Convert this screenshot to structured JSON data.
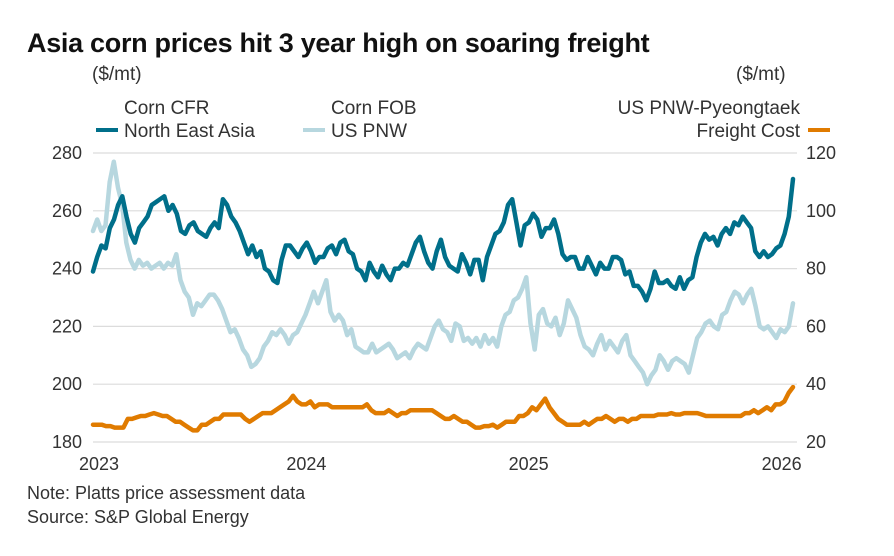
{
  "chart_data": {
    "type": "line",
    "title": "Asia corn prices hit 3 year high on soaring freight",
    "left_axis": {
      "unit": "($/mt)",
      "range": [
        180,
        280
      ],
      "ticks": [
        180,
        200,
        220,
        240,
        260,
        280
      ]
    },
    "right_axis": {
      "unit": "($/mt)",
      "range": [
        20,
        120
      ],
      "ticks": [
        20,
        40,
        60,
        80,
        100,
        120
      ]
    },
    "x_range": [
      2023.0,
      2026.2
    ],
    "x_ticks": [
      {
        "label": "2023",
        "value": 2023.0
      },
      {
        "label": "2024",
        "value": 2023.97
      },
      {
        "label": "2025",
        "value": 2024.98
      },
      {
        "label": "2026",
        "value": 2026.13
      }
    ],
    "grid": true,
    "legend": [
      {
        "line1": "Corn CFR",
        "line2": "North East Asia",
        "color": "#006f8a",
        "axis": "left"
      },
      {
        "line1": "Corn FOB",
        "line2": "US PNW",
        "color": "#b7d7df",
        "axis": "left"
      },
      {
        "line1": "US PNW-Pyeongtaek",
        "line2": "Freight Cost",
        "color": "#e07b00",
        "axis": "right"
      }
    ],
    "series": [
      {
        "name": "Corn CFR North East Asia",
        "axis": "left",
        "color": "#006f8a",
        "values": [
          239,
          244,
          248,
          247,
          254,
          257,
          262,
          265,
          258,
          252,
          249,
          254,
          256,
          258,
          262,
          263,
          264,
          265,
          260,
          262,
          259,
          253,
          252,
          255,
          256,
          253,
          252,
          251,
          254,
          256,
          254,
          264,
          262,
          258,
          256,
          253,
          249,
          245,
          248,
          244,
          246,
          240,
          239,
          236,
          235,
          243,
          248,
          248,
          246,
          244,
          247,
          249,
          246,
          242,
          244,
          244,
          247,
          248,
          245,
          249,
          250,
          246,
          245,
          240,
          239,
          236,
          242,
          239,
          237,
          241,
          238,
          236,
          240,
          240,
          242,
          241,
          245,
          249,
          251,
          246,
          242,
          240,
          246,
          250,
          244,
          241,
          240,
          239,
          245,
          242,
          238,
          243,
          243,
          236,
          244,
          248,
          252,
          253,
          256,
          262,
          264,
          256,
          248,
          255,
          256,
          259,
          257,
          251,
          254,
          254,
          257,
          252,
          245,
          243,
          244,
          244,
          240,
          240,
          244,
          241,
          238,
          242,
          240,
          240,
          244,
          244,
          243,
          238,
          239,
          234,
          234,
          232,
          229,
          233,
          239,
          235,
          235,
          236,
          234,
          233,
          237,
          233,
          236,
          237,
          244,
          249,
          252,
          250,
          251,
          248,
          252,
          254,
          252,
          256,
          255,
          258,
          256,
          254,
          246,
          244,
          246,
          244,
          245,
          247,
          248,
          252,
          258,
          271
        ]
      },
      {
        "name": "Corn FOB US PNW",
        "axis": "left",
        "color": "#b7d7df",
        "values": [
          253,
          257,
          253,
          255,
          270,
          277,
          268,
          262,
          249,
          243,
          240,
          243,
          241,
          242,
          240,
          241,
          242,
          240,
          242,
          241,
          245,
          236,
          232,
          230,
          224,
          228,
          227,
          229,
          231,
          231,
          229,
          226,
          222,
          218,
          219,
          216,
          212,
          210,
          206,
          207,
          209,
          213,
          215,
          218,
          217,
          219,
          217,
          214,
          217,
          218,
          221,
          224,
          228,
          232,
          228,
          232,
          236,
          225,
          222,
          224,
          222,
          217,
          219,
          213,
          212,
          211,
          211,
          214,
          211,
          212,
          213,
          214,
          212,
          209,
          210,
          211,
          209,
          212,
          214,
          213,
          212,
          216,
          220,
          222,
          219,
          218,
          215,
          221,
          220,
          215,
          216,
          214,
          216,
          213,
          217,
          214,
          216,
          213,
          220,
          224,
          225,
          229,
          230,
          233,
          237,
          221,
          212,
          224,
          226,
          221,
          220,
          223,
          217,
          221,
          229,
          226,
          223,
          217,
          213,
          212,
          210,
          214,
          217,
          212,
          215,
          213,
          211,
          215,
          217,
          210,
          208,
          206,
          204,
          200,
          203,
          205,
          210,
          208,
          205,
          208,
          209,
          208,
          207,
          204,
          210,
          216,
          218,
          221,
          222,
          220,
          219,
          224,
          225,
          229,
          232,
          231,
          228,
          231,
          233,
          227,
          220,
          219,
          220,
          218,
          216,
          219,
          218,
          220,
          228
        ]
      },
      {
        "name": "US PNW-Pyeongtaek Freight Cost",
        "axis": "right",
        "color": "#e07b00",
        "values": [
          26,
          26,
          26,
          25.5,
          25.5,
          25,
          25,
          25,
          28,
          28,
          28.5,
          29,
          29,
          29.5,
          30,
          29.5,
          29,
          29,
          28,
          27,
          27,
          26,
          25,
          24,
          24,
          26,
          26,
          27,
          28,
          28,
          29.5,
          29.5,
          29.5,
          29.5,
          29.5,
          28,
          27,
          28,
          29,
          30,
          30,
          30,
          31,
          32,
          33,
          34,
          36,
          34,
          33,
          33,
          34,
          32,
          33,
          33,
          33,
          32,
          32,
          32,
          32,
          32,
          32,
          32,
          32,
          33,
          31,
          30,
          30,
          30,
          31,
          30,
          29,
          30,
          30,
          31,
          31,
          31,
          31,
          31,
          31,
          30,
          29,
          28,
          28,
          29,
          28,
          27,
          27,
          26,
          25,
          25,
          25.5,
          25.5,
          26,
          25,
          26,
          27,
          27,
          27,
          29,
          29,
          30,
          32,
          31,
          33,
          35,
          32,
          30,
          28,
          27,
          26,
          26,
          26,
          26,
          27,
          26,
          27,
          28,
          28,
          29,
          28,
          27,
          28,
          28,
          27,
          28,
          28,
          29,
          29,
          29,
          29,
          29.5,
          29.5,
          29.5,
          30,
          29.5,
          29.5,
          30,
          30,
          30,
          30,
          29.5,
          29,
          29,
          29,
          29,
          29,
          29,
          29,
          29,
          29,
          30,
          30,
          31,
          30,
          31,
          32,
          31,
          33,
          33,
          34,
          37,
          39
        ]
      }
    ],
    "notes": [
      "Note: Platts price assessment data",
      "Source: S&P Global Energy"
    ]
  }
}
